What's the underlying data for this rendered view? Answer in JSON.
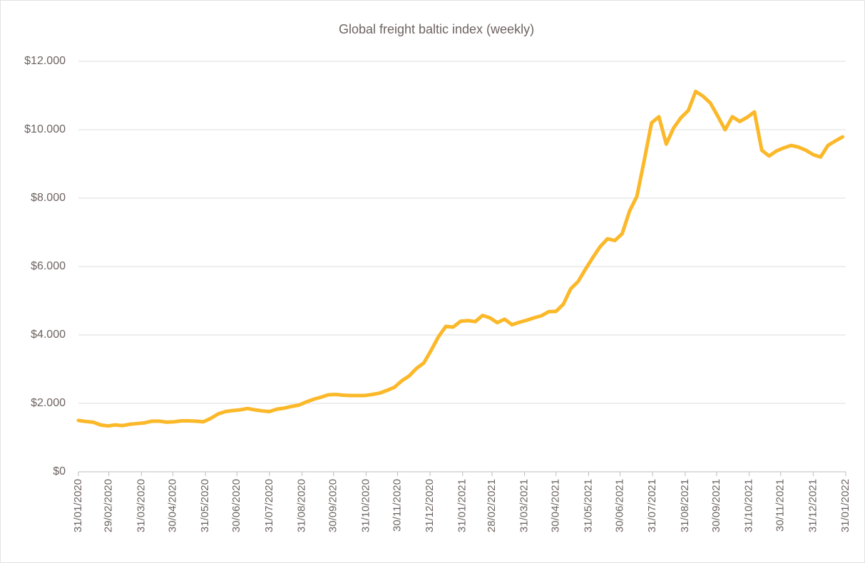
{
  "chart_data": {
    "type": "line",
    "title": "Global freight baltic index (weekly)",
    "x": [
      "2020-01-31",
      "2020-02-07",
      "2020-02-14",
      "2020-02-21",
      "2020-02-28",
      "2020-03-06",
      "2020-03-13",
      "2020-03-20",
      "2020-03-27",
      "2020-04-03",
      "2020-04-10",
      "2020-04-17",
      "2020-04-24",
      "2020-05-01",
      "2020-05-08",
      "2020-05-15",
      "2020-05-22",
      "2020-05-29",
      "2020-06-05",
      "2020-06-12",
      "2020-06-19",
      "2020-06-26",
      "2020-07-03",
      "2020-07-10",
      "2020-07-17",
      "2020-07-24",
      "2020-07-31",
      "2020-08-07",
      "2020-08-14",
      "2020-08-21",
      "2020-08-28",
      "2020-09-04",
      "2020-09-11",
      "2020-09-18",
      "2020-09-25",
      "2020-10-02",
      "2020-10-09",
      "2020-10-16",
      "2020-10-23",
      "2020-10-30",
      "2020-11-06",
      "2020-11-13",
      "2020-11-20",
      "2020-11-27",
      "2020-12-04",
      "2020-12-11",
      "2020-12-18",
      "2020-12-25",
      "2021-01-01",
      "2021-01-08",
      "2021-01-15",
      "2021-01-22",
      "2021-01-29",
      "2021-02-05",
      "2021-02-12",
      "2021-02-19",
      "2021-02-26",
      "2021-03-05",
      "2021-03-12",
      "2021-03-19",
      "2021-03-26",
      "2021-04-02",
      "2021-04-09",
      "2021-04-16",
      "2021-04-23",
      "2021-04-30",
      "2021-05-07",
      "2021-05-14",
      "2021-05-21",
      "2021-05-28",
      "2021-06-04",
      "2021-06-11",
      "2021-06-18",
      "2021-06-25",
      "2021-07-02",
      "2021-07-09",
      "2021-07-16",
      "2021-07-23",
      "2021-07-30",
      "2021-08-06",
      "2021-08-13",
      "2021-08-20",
      "2021-08-27",
      "2021-09-03",
      "2021-09-10",
      "2021-09-17",
      "2021-09-24",
      "2021-10-01",
      "2021-10-08",
      "2021-10-15",
      "2021-10-22",
      "2021-10-29",
      "2021-11-05",
      "2021-11-12",
      "2021-11-19",
      "2021-11-26",
      "2021-12-03",
      "2021-12-10",
      "2021-12-17",
      "2021-12-24",
      "2021-12-31",
      "2022-01-07",
      "2022-01-14",
      "2022-01-21",
      "2022-01-28"
    ],
    "series": [
      {
        "name": "Global freight baltic index",
        "color": "#fbb829",
        "values": [
          1500,
          1470,
          1450,
          1370,
          1340,
          1370,
          1350,
          1390,
          1410,
          1430,
          1480,
          1480,
          1450,
          1460,
          1490,
          1490,
          1480,
          1460,
          1560,
          1690,
          1760,
          1790,
          1810,
          1850,
          1810,
          1780,
          1760,
          1830,
          1860,
          1910,
          1950,
          2040,
          2120,
          2180,
          2250,
          2260,
          2240,
          2230,
          2230,
          2230,
          2260,
          2300,
          2380,
          2470,
          2660,
          2800,
          3020,
          3180,
          3550,
          3950,
          4250,
          4230,
          4400,
          4420,
          4390,
          4570,
          4500,
          4360,
          4460,
          4300,
          4370,
          4430,
          4500,
          4560,
          4680,
          4690,
          4900,
          5350,
          5560,
          5920,
          6260,
          6580,
          6810,
          6760,
          6960,
          7620,
          8050,
          9100,
          10200,
          10380,
          9580,
          10050,
          10350,
          10560,
          11120,
          10980,
          10780,
          10400,
          10000,
          10380,
          10240,
          10360,
          10520,
          9400,
          9230,
          9380,
          9470,
          9540,
          9490,
          9400,
          9270,
          9200,
          9540,
          9670,
          9790
        ]
      }
    ],
    "xlim": [
      "2020-01-31",
      "2022-01-31"
    ],
    "xticks": [
      {
        "value": "2020-01-31",
        "label": "31/01/2020"
      },
      {
        "value": "2020-02-29",
        "label": "29/02/2020"
      },
      {
        "value": "2020-03-31",
        "label": "31/03/2020"
      },
      {
        "value": "2020-04-30",
        "label": "30/04/2020"
      },
      {
        "value": "2020-05-31",
        "label": "31/05/2020"
      },
      {
        "value": "2020-06-30",
        "label": "30/06/2020"
      },
      {
        "value": "2020-07-31",
        "label": "31/07/2020"
      },
      {
        "value": "2020-08-31",
        "label": "31/08/2020"
      },
      {
        "value": "2020-09-30",
        "label": "30/09/2020"
      },
      {
        "value": "2020-10-31",
        "label": "31/10/2020"
      },
      {
        "value": "2020-11-30",
        "label": "30/11/2020"
      },
      {
        "value": "2020-12-31",
        "label": "31/12/2020"
      },
      {
        "value": "2021-01-31",
        "label": "31/01/2021"
      },
      {
        "value": "2021-02-28",
        "label": "28/02/2021"
      },
      {
        "value": "2021-03-31",
        "label": "31/03/2021"
      },
      {
        "value": "2021-04-30",
        "label": "30/04/2021"
      },
      {
        "value": "2021-05-31",
        "label": "31/05/2021"
      },
      {
        "value": "2021-06-30",
        "label": "30/06/2021"
      },
      {
        "value": "2021-07-31",
        "label": "31/07/2021"
      },
      {
        "value": "2021-08-31",
        "label": "31/08/2021"
      },
      {
        "value": "2021-09-30",
        "label": "30/09/2021"
      },
      {
        "value": "2021-10-31",
        "label": "31/10/2021"
      },
      {
        "value": "2021-11-30",
        "label": "30/11/2021"
      },
      {
        "value": "2021-12-31",
        "label": "31/12/2021"
      },
      {
        "value": "2022-01-31",
        "label": "31/01/2022"
      }
    ],
    "ylim": [
      0,
      12000
    ],
    "yticks": [
      {
        "value": 0,
        "label": "$0"
      },
      {
        "value": 2000,
        "label": "$2.000"
      },
      {
        "value": 4000,
        "label": "$4.000"
      },
      {
        "value": 6000,
        "label": "$6.000"
      },
      {
        "value": 8000,
        "label": "$8.000"
      },
      {
        "value": 10000,
        "label": "$10.000"
      },
      {
        "value": 12000,
        "label": "$12.000"
      }
    ],
    "grid": true
  }
}
